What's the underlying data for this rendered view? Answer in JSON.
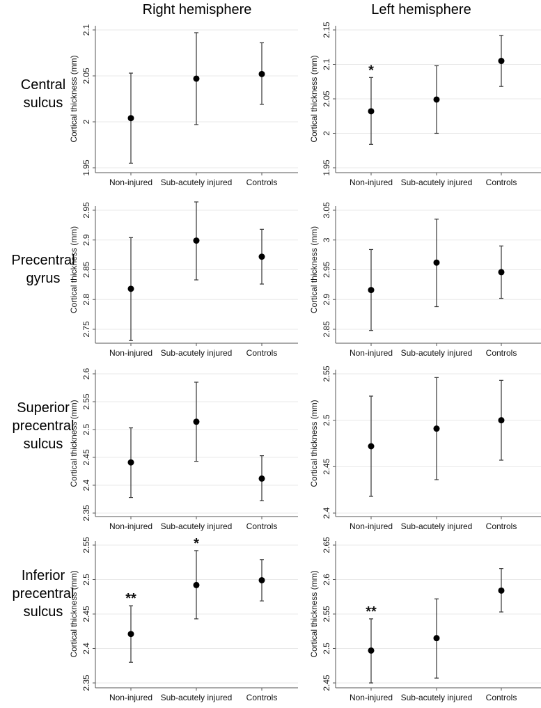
{
  "chart_data": {
    "type": "scatter",
    "subtype": "point-with-error-bars",
    "column_titles": [
      "Right hemisphere",
      "Left hemisphere"
    ],
    "row_labels": [
      [
        "Central",
        "sulcus"
      ],
      [
        "Precentral",
        "gyrus"
      ],
      [
        "Superior",
        "precentral",
        "sulcus"
      ],
      [
        "Inferior",
        "precentral",
        "sulcus"
      ]
    ],
    "categories": [
      "Non-injured",
      "Sub-acutely injured",
      "Controls"
    ],
    "ylabel": "Cortical thickness (mm)",
    "grid": true,
    "colors": {
      "point": "#000000",
      "errorbar": "#333333",
      "grid": "#e8e8e8",
      "axis": "#555555"
    },
    "panels": [
      {
        "row": 0,
        "col": 0,
        "ylim": [
          1.95,
          2.1
        ],
        "yticks": [
          "1.95",
          "2",
          "2.05",
          "2.1"
        ],
        "mean": [
          2.004,
          2.047,
          2.052
        ],
        "lower": [
          1.955,
          1.997,
          2.019
        ],
        "upper": [
          2.053,
          2.097,
          2.086
        ],
        "annotations": [
          "",
          "",
          ""
        ]
      },
      {
        "row": 0,
        "col": 1,
        "ylim": [
          1.95,
          2.15
        ],
        "yticks": [
          "1.95",
          "2",
          "2.05",
          "2.1",
          "2.15"
        ],
        "mean": [
          2.032,
          2.049,
          2.105
        ],
        "lower": [
          1.984,
          2.0,
          2.068
        ],
        "upper": [
          2.081,
          2.098,
          2.142
        ],
        "annotations": [
          "*",
          "",
          ""
        ]
      },
      {
        "row": 1,
        "col": 0,
        "ylim": [
          2.75,
          2.95
        ],
        "yticks": [
          "2.75",
          "2.8",
          "2.85",
          "2.9",
          "2.95"
        ],
        "mean": [
          2.818,
          2.899,
          2.872
        ],
        "lower": [
          2.731,
          2.833,
          2.826
        ],
        "upper": [
          2.904,
          2.964,
          2.918
        ],
        "annotations": [
          "",
          "",
          ""
        ]
      },
      {
        "row": 1,
        "col": 1,
        "ylim": [
          2.85,
          3.05
        ],
        "yticks": [
          "2.85",
          "2.9",
          "2.95",
          "3",
          "3.05"
        ],
        "mean": [
          2.916,
          2.962,
          2.946
        ],
        "lower": [
          2.848,
          2.888,
          2.902
        ],
        "upper": [
          2.984,
          3.035,
          2.99
        ],
        "annotations": [
          "",
          "",
          ""
        ]
      },
      {
        "row": 2,
        "col": 0,
        "ylim": [
          2.35,
          2.6
        ],
        "yticks": [
          "2.35",
          "2.4",
          "2.45",
          "2.5",
          "2.55",
          "2.6"
        ],
        "mean": [
          2.441,
          2.514,
          2.412
        ],
        "lower": [
          2.378,
          2.443,
          2.372
        ],
        "upper": [
          2.503,
          2.585,
          2.453
        ],
        "annotations": [
          "",
          "",
          ""
        ]
      },
      {
        "row": 2,
        "col": 1,
        "ylim": [
          2.4,
          2.55
        ],
        "yticks": [
          "2.4",
          "2.45",
          "2.5",
          "2.55"
        ],
        "mean": [
          2.472,
          2.491,
          2.5
        ],
        "lower": [
          2.418,
          2.436,
          2.457
        ],
        "upper": [
          2.526,
          2.546,
          2.543
        ],
        "annotations": [
          "",
          "",
          ""
        ]
      },
      {
        "row": 3,
        "col": 0,
        "ylim": [
          2.35,
          2.55
        ],
        "yticks": [
          "2.35",
          "2.4",
          "2.45",
          "2.5",
          "2.55"
        ],
        "mean": [
          2.421,
          2.492,
          2.499
        ],
        "lower": [
          2.38,
          2.443,
          2.469
        ],
        "upper": [
          2.462,
          2.542,
          2.529
        ],
        "annotations": [
          "**",
          "*",
          ""
        ]
      },
      {
        "row": 3,
        "col": 1,
        "ylim": [
          2.45,
          2.65
        ],
        "yticks": [
          "2.45",
          "2.5",
          "2.55",
          "2.6",
          "2.65"
        ],
        "mean": [
          2.497,
          2.515,
          2.584
        ],
        "lower": [
          2.45,
          2.457,
          2.553
        ],
        "upper": [
          2.543,
          2.572,
          2.616
        ],
        "annotations": [
          "**",
          "",
          ""
        ]
      }
    ]
  }
}
